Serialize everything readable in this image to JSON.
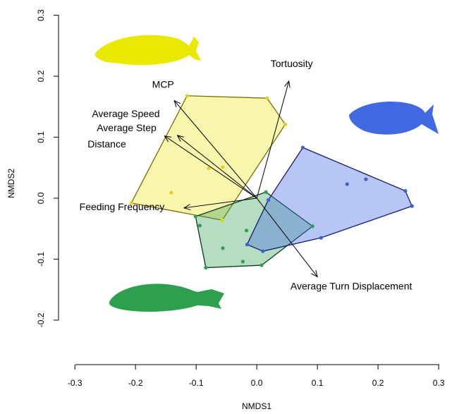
{
  "chart_data": {
    "type": "scatter",
    "x_label": "NMDS1",
    "y_label": "NMDS2",
    "xlim": [
      -0.327,
      0.322
    ],
    "ylim": [
      -0.273,
      0.325
    ],
    "xticks": [
      -0.3,
      -0.2,
      -0.1,
      {
        "value": 0,
        "label": "0.0"
      },
      0.1,
      0.2,
      0.3
    ],
    "yticks": [
      -0.2,
      -0.1,
      {
        "value": 0,
        "label": "0.0"
      },
      0.1,
      0.2,
      0.3
    ],
    "series": [
      {
        "color": "#e0d21c",
        "fill": "rgba(240,232,70,0.45)",
        "stroke": "#7a6d00",
        "x": [
          -0.115,
          0.017,
          0.047,
          -0.057,
          -0.207,
          -0.141,
          -0.079,
          -0.056
        ],
        "y": [
          0.168,
          0.164,
          0.121,
          -0.036,
          -0.008,
          0.009,
          0.049,
          0.051
        ]
      },
      {
        "color": "#2e9e4f",
        "fill": "rgba(46,158,79,0.35)",
        "stroke": "#0b3d17",
        "x": [
          -0.101,
          0.015,
          0.092,
          0.008,
          -0.084,
          -0.094,
          -0.056,
          -0.017,
          -0.023
        ],
        "y": [
          -0.03,
          0.01,
          -0.046,
          -0.11,
          -0.114,
          -0.045,
          -0.082,
          -0.053,
          -0.104
        ]
      },
      {
        "color": "#3a5fd8",
        "fill": "rgba(65,105,225,0.38)",
        "stroke": "#141c6e",
        "x": [
          0.076,
          0.245,
          0.256,
          0.01,
          -0.016,
          0.019,
          0.149,
          0.18,
          0.106
        ],
        "y": [
          0.083,
          0.012,
          -0.013,
          -0.087,
          -0.076,
          -0.003,
          0.023,
          0.031,
          -0.065
        ]
      }
    ],
    "vectors": [
      {
        "label": "Tortuosity",
        "x": 0.053,
        "y": 0.192
      },
      {
        "label": "MCP",
        "x": -0.136,
        "y": 0.16
      },
      {
        "label": "Average Speed",
        "x": -0.152,
        "y": 0.102
      },
      {
        "label": "Average Step Distance",
        "x": -0.131,
        "y": 0.103
      },
      {
        "label": "Feeding Frequency",
        "x": -0.12,
        "y": -0.016
      },
      {
        "label": "Average Turn Displacement",
        "x": 0.1,
        "y": -0.129
      }
    ]
  }
}
